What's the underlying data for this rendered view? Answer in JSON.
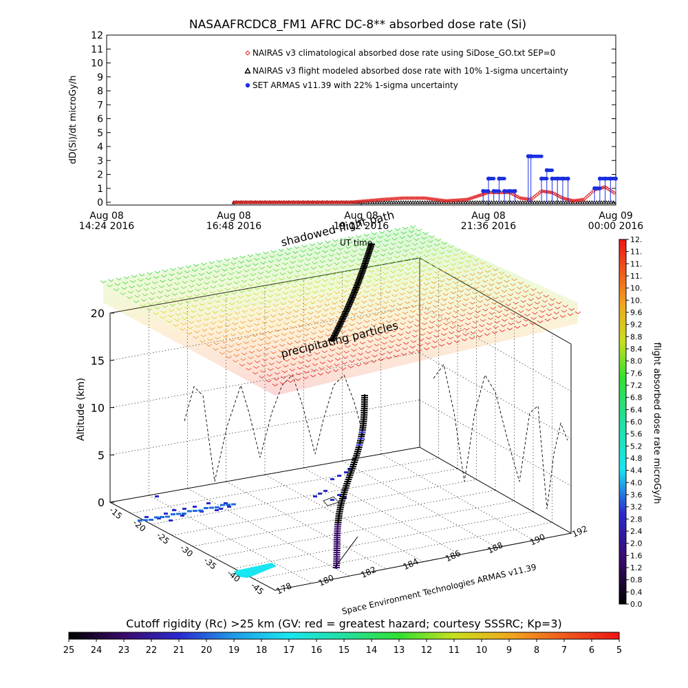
{
  "colors": {
    "nairas_clim": "#e02020",
    "nairas_flight": "#000000",
    "armas": "#1a2fe0",
    "cutoff_scale": [
      "#000000",
      "#3a0a6a",
      "#2a2ad0",
      "#1e9be8",
      "#19e6f0",
      "#22e0a0",
      "#32e032",
      "#c8e01e",
      "#f0a81e",
      "#f05a1e",
      "#f01414"
    ],
    "dose_scale": [
      "#000000",
      "#3a0a6a",
      "#2a2ad0",
      "#19e6f0",
      "#22e0a0",
      "#32e032",
      "#c8e01e",
      "#f0a81e",
      "#f05a1e",
      "#f01414"
    ]
  },
  "chart_data": [
    {
      "type": "line",
      "title": "NASAAFRCDC8_FM1 AFRC DC-8** absorbed dose rate (Si)",
      "ylabel": "dD(Si)/dt microGy/h",
      "xlabel": "UT time",
      "ylim": [
        0,
        12
      ],
      "yticks": [
        "0",
        "1",
        "2",
        "3",
        "4",
        "5",
        "6",
        "7",
        "8",
        "9",
        "10",
        "11",
        "12"
      ],
      "xticks": [
        {
          "line1": "Aug 08",
          "line2": "14:24 2016"
        },
        {
          "line1": "Aug 08",
          "line2": "16:48 2016"
        },
        {
          "line1": "Aug 08",
          "line2": "19:12 2016"
        },
        {
          "line1": "Aug 08",
          "line2": "21:36 2016"
        },
        {
          "line1": "Aug 09",
          "line2": "00:00 2016"
        }
      ],
      "x_range_hours": [
        14.4,
        24.0
      ],
      "legend_position": "top-right",
      "series": [
        {
          "name": "NAIRAS v3 climatological absorbed dose rate using SiDose_GO.txt SEP=0",
          "marker": "diamond",
          "color": "#e02020",
          "x": [
            16.8,
            18.0,
            19.0,
            19.6,
            20.0,
            20.4,
            20.8,
            21.2,
            21.6,
            22.0,
            22.2,
            22.4,
            22.6,
            22.8,
            23.0,
            23.2,
            23.4,
            23.6,
            23.8,
            24.0
          ],
          "y": [
            0,
            0,
            0,
            0.2,
            0.3,
            0.3,
            0.1,
            0.2,
            0.7,
            0.7,
            0.3,
            0.2,
            0.8,
            0.7,
            0.3,
            0.1,
            0.2,
            0.9,
            1.1,
            0.6
          ]
        },
        {
          "name": "NAIRAS v3 flight modeled absorbed dose rate with 10% 1-sigma uncertainty",
          "marker": "triangle",
          "color": "#000000",
          "x": [
            16.8,
            24.0
          ],
          "y": [
            0,
            0
          ]
        },
        {
          "name": "SET ARMAS v11.39 with 22% 1-sigma uncertainty",
          "marker": "circle",
          "color": "#1a2fe0",
          "x": [
            21.5,
            21.6,
            21.7,
            21.8,
            21.9,
            22.0,
            22.1,
            22.35,
            22.4,
            22.6,
            22.7,
            22.8,
            22.9,
            23.0,
            23.1,
            23.6,
            23.7,
            23.8,
            23.9,
            24.0
          ],
          "y": [
            0.8,
            1.7,
            0.8,
            1.7,
            0.8,
            0.8,
            0.8,
            3.3,
            3.3,
            1.7,
            2.3,
            1.7,
            1.7,
            1.7,
            1.7,
            1.0,
            1.7,
            1.7,
            1.7,
            1.7
          ]
        }
      ]
    },
    {
      "type": "scatter",
      "title": "",
      "zlabel": "Altitude (km)",
      "zticks": [
        "0",
        "5",
        "10",
        "15",
        "20"
      ],
      "latticks": [
        "-15",
        "-20",
        "-25",
        "-30",
        "-35",
        "-40",
        "-45"
      ],
      "lonticks": [
        "178",
        "180",
        "182",
        "184",
        "186",
        "188",
        "190",
        "192"
      ],
      "annotations": [
        "shadowed flight path",
        "UT time",
        "precipitating particles"
      ],
      "credit": "Space Environment Technologies ARMAS v11.39",
      "colorbar_dose": {
        "label": "flight absorbed dose rate microGy/h",
        "ticks": [
          "0.0",
          "0.4",
          "0.8",
          "1.2",
          "1.6",
          "2.0",
          "2.4",
          "2.8",
          "3.2",
          "3.6",
          "4.0",
          "4.4",
          "4.8",
          "5.2",
          "5.6",
          "6.0",
          "6.4",
          "6.8",
          "7.2",
          "7.6",
          "8.0",
          "8.4",
          "8.8",
          "9.2",
          "9.6",
          "10.",
          "10.",
          "11.",
          "11.",
          "11.",
          "12."
        ]
      },
      "colorbar_cutoff": {
        "label": "Cutoff rigidity (Rc) >25 km (GV: red = greatest hazard; courtesy SSSRC; Kp=3)",
        "ticks": [
          "25",
          "24",
          "23",
          "22",
          "21",
          "20",
          "19",
          "18",
          "17",
          "16",
          "15",
          "14",
          "13",
          "12",
          "11",
          "10",
          "9",
          "8",
          "7",
          "6",
          "5"
        ]
      }
    }
  ]
}
